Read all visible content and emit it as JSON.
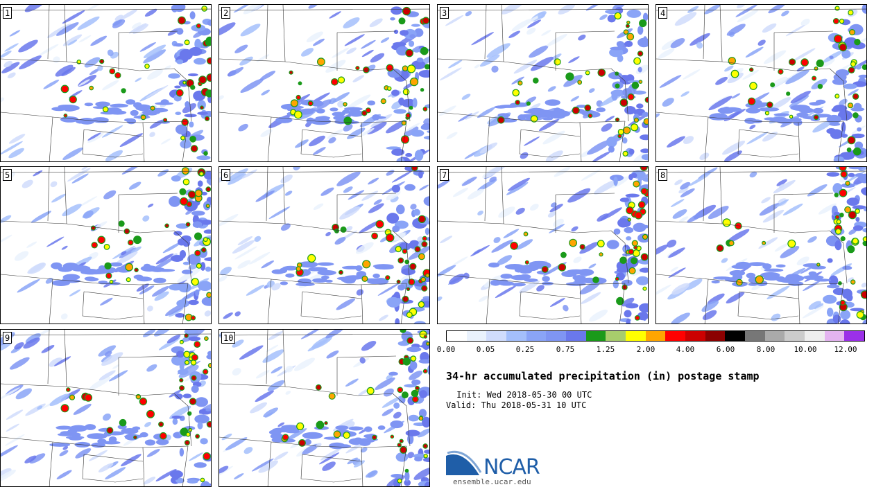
{
  "panels": [
    {
      "label": "1"
    },
    {
      "label": "2"
    },
    {
      "label": "3"
    },
    {
      "label": "4"
    },
    {
      "label": "5"
    },
    {
      "label": "6"
    },
    {
      "label": "7"
    },
    {
      "label": "8"
    },
    {
      "label": "9"
    },
    {
      "label": "10"
    }
  ],
  "colorbar": {
    "colors": [
      "#ffffff",
      "#eaf2fd",
      "#d0dcfc",
      "#a4bffb",
      "#8aa4f7",
      "#7f95f3",
      "#6a78ec",
      "#1a9a1a",
      "#a8cd6c",
      "#ffff00",
      "#ffa500",
      "#ff0000",
      "#cc0000",
      "#8b0000",
      "#000000",
      "#777777",
      "#aaaaaa",
      "#cccccc",
      "#eeeeee",
      "#e4b4f0",
      "#9b30e8"
    ],
    "tick_labels": [
      "0.00",
      "0.05",
      "0.25",
      "0.75",
      "1.25",
      "2.00",
      "4.00",
      "6.00",
      "8.00",
      "10.00",
      "12.00"
    ]
  },
  "title": "34-hr accumulated precipitation (in) postage stamp",
  "init_line": " Init: Wed 2018-05-30 00 UTC",
  "valid_line": "Valid: Thu 2018-05-31 10 UTC",
  "logo_text": "NCAR",
  "logo_url": "ensemble.ucar.edu"
}
